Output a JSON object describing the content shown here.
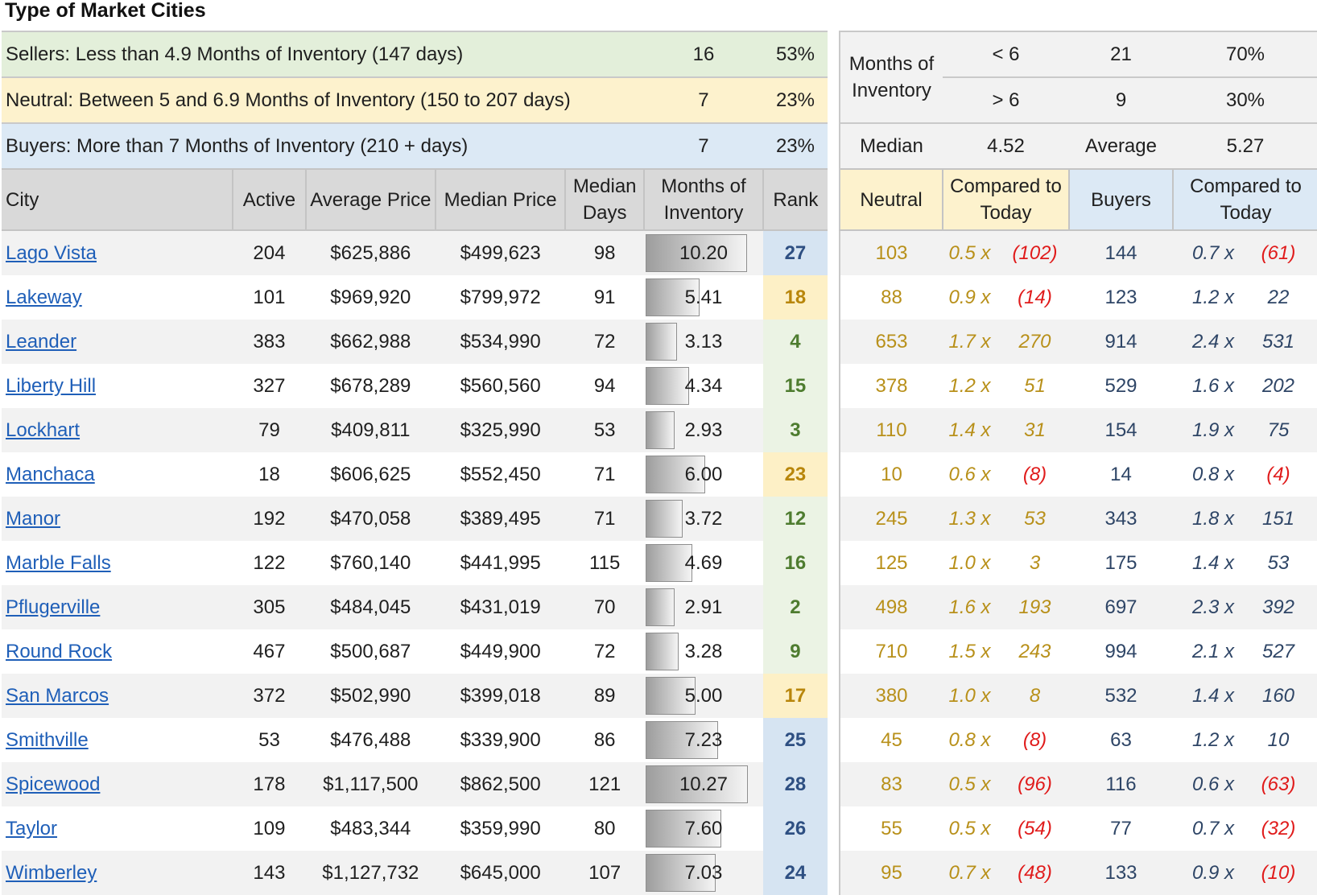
{
  "title": "Type of Market Cities",
  "summary": [
    {
      "label": "Sellers: Less than 4.9 Months of Inventory (147 days)",
      "count": "16",
      "pct": "53%"
    },
    {
      "label": "Neutral: Between 5 and 6.9 Months of Inventory (150 to 207 days)",
      "count": "7",
      "pct": "23%"
    },
    {
      "label": "Buyers: More than 7 Months of Inventory (210 + days)",
      "count": "7",
      "pct": "23%"
    }
  ],
  "right_summary": {
    "moi_label": "Months of Inventory",
    "lt_label": "< 6",
    "lt_count": "21",
    "lt_pct": "70%",
    "gt_label": "> 6",
    "gt_count": "9",
    "gt_pct": "30%",
    "median_label": "Median",
    "median_value": "4.52",
    "average_label": "Average",
    "average_value": "5.27"
  },
  "headers": {
    "city": "City",
    "active": "Active",
    "avg_price": "Average Price",
    "median_price": "Median Price",
    "median_days": "Median Days",
    "moi": "Months of Inventory",
    "rank": "Rank",
    "neutral": "Neutral",
    "compared1": "Compared to Today",
    "buyers": "Buyers",
    "compared2": "Compared to Today"
  },
  "rows": [
    {
      "city": "Lago Vista",
      "active": "204",
      "avg": "$625,886",
      "median": "$499,623",
      "days": "98",
      "moi": "10.20",
      "moi_value": 10.2,
      "rank": "27",
      "rank_color": "blue",
      "neutral": "103",
      "n_x": "0.5 x",
      "n_diff": "(102)",
      "n_neg": true,
      "buyers": "144",
      "b_x": "0.7 x",
      "b_diff": "(61)",
      "b_neg": true
    },
    {
      "city": "Lakeway",
      "active": "101",
      "avg": "$969,920",
      "median": "$799,972",
      "days": "91",
      "moi": "5.41",
      "moi_value": 5.41,
      "rank": "18",
      "rank_color": "yellow",
      "neutral": "88",
      "n_x": "0.9 x",
      "n_diff": "(14)",
      "n_neg": true,
      "buyers": "123",
      "b_x": "1.2 x",
      "b_diff": "22",
      "b_neg": false
    },
    {
      "city": "Leander",
      "active": "383",
      "avg": "$662,988",
      "median": "$534,990",
      "days": "72",
      "moi": "3.13",
      "moi_value": 3.13,
      "rank": "4",
      "rank_color": "green",
      "neutral": "653",
      "n_x": "1.7 x",
      "n_diff": "270",
      "n_neg": false,
      "buyers": "914",
      "b_x": "2.4 x",
      "b_diff": "531",
      "b_neg": false
    },
    {
      "city": "Liberty Hill",
      "active": "327",
      "avg": "$678,289",
      "median": "$560,560",
      "days": "94",
      "moi": "4.34",
      "moi_value": 4.34,
      "rank": "15",
      "rank_color": "green",
      "neutral": "378",
      "n_x": "1.2 x",
      "n_diff": "51",
      "n_neg": false,
      "buyers": "529",
      "b_x": "1.6 x",
      "b_diff": "202",
      "b_neg": false
    },
    {
      "city": "Lockhart",
      "active": "79",
      "avg": "$409,811",
      "median": "$325,990",
      "days": "53",
      "moi": "2.93",
      "moi_value": 2.93,
      "rank": "3",
      "rank_color": "green",
      "neutral": "110",
      "n_x": "1.4 x",
      "n_diff": "31",
      "n_neg": false,
      "buyers": "154",
      "b_x": "1.9 x",
      "b_diff": "75",
      "b_neg": false
    },
    {
      "city": "Manchaca",
      "active": "18",
      "avg": "$606,625",
      "median": "$552,450",
      "days": "71",
      "moi": "6.00",
      "moi_value": 6.0,
      "rank": "23",
      "rank_color": "yellow",
      "neutral": "10",
      "n_x": "0.6 x",
      "n_diff": "(8)",
      "n_neg": true,
      "buyers": "14",
      "b_x": "0.8 x",
      "b_diff": "(4)",
      "b_neg": true
    },
    {
      "city": "Manor",
      "active": "192",
      "avg": "$470,058",
      "median": "$389,495",
      "days": "71",
      "moi": "3.72",
      "moi_value": 3.72,
      "rank": "12",
      "rank_color": "green",
      "neutral": "245",
      "n_x": "1.3 x",
      "n_diff": "53",
      "n_neg": false,
      "buyers": "343",
      "b_x": "1.8 x",
      "b_diff": "151",
      "b_neg": false
    },
    {
      "city": "Marble Falls",
      "active": "122",
      "avg": "$760,140",
      "median": "$441,995",
      "days": "115",
      "moi": "4.69",
      "moi_value": 4.69,
      "rank": "16",
      "rank_color": "green",
      "neutral": "125",
      "n_x": "1.0 x",
      "n_diff": "3",
      "n_neg": false,
      "buyers": "175",
      "b_x": "1.4 x",
      "b_diff": "53",
      "b_neg": false
    },
    {
      "city": "Pflugerville",
      "active": "305",
      "avg": "$484,045",
      "median": "$431,019",
      "days": "70",
      "moi": "2.91",
      "moi_value": 2.91,
      "rank": "2",
      "rank_color": "green",
      "neutral": "498",
      "n_x": "1.6 x",
      "n_diff": "193",
      "n_neg": false,
      "buyers": "697",
      "b_x": "2.3 x",
      "b_diff": "392",
      "b_neg": false
    },
    {
      "city": "Round Rock",
      "active": "467",
      "avg": "$500,687",
      "median": "$449,900",
      "days": "72",
      "moi": "3.28",
      "moi_value": 3.28,
      "rank": "9",
      "rank_color": "green",
      "neutral": "710",
      "n_x": "1.5 x",
      "n_diff": "243",
      "n_neg": false,
      "buyers": "994",
      "b_x": "2.1 x",
      "b_diff": "527",
      "b_neg": false
    },
    {
      "city": "San Marcos",
      "active": "372",
      "avg": "$502,990",
      "median": "$399,018",
      "days": "89",
      "moi": "5.00",
      "moi_value": 5.0,
      "rank": "17",
      "rank_color": "yellow",
      "neutral": "380",
      "n_x": "1.0 x",
      "n_diff": "8",
      "n_neg": false,
      "buyers": "532",
      "b_x": "1.4 x",
      "b_diff": "160",
      "b_neg": false
    },
    {
      "city": "Smithville",
      "active": "53",
      "avg": "$476,488",
      "median": "$339,900",
      "days": "86",
      "moi": "7.23",
      "moi_value": 7.23,
      "rank": "25",
      "rank_color": "blue",
      "neutral": "45",
      "n_x": "0.8 x",
      "n_diff": "(8)",
      "n_neg": true,
      "buyers": "63",
      "b_x": "1.2 x",
      "b_diff": "10",
      "b_neg": false
    },
    {
      "city": "Spicewood",
      "active": "178",
      "avg": "$1,117,500",
      "median": "$862,500",
      "days": "121",
      "moi": "10.27",
      "moi_value": 10.27,
      "rank": "28",
      "rank_color": "blue",
      "neutral": "83",
      "n_x": "0.5 x",
      "n_diff": "(96)",
      "n_neg": true,
      "buyers": "116",
      "b_x": "0.6 x",
      "b_diff": "(63)",
      "b_neg": true
    },
    {
      "city": "Taylor",
      "active": "109",
      "avg": "$483,344",
      "median": "$359,990",
      "days": "80",
      "moi": "7.60",
      "moi_value": 7.6,
      "rank": "26",
      "rank_color": "blue",
      "neutral": "55",
      "n_x": "0.5 x",
      "n_diff": "(54)",
      "n_neg": true,
      "buyers": "77",
      "b_x": "0.7 x",
      "b_diff": "(32)",
      "b_neg": true
    },
    {
      "city": "Wimberley",
      "active": "143",
      "avg": "$1,127,732",
      "median": "$645,000",
      "days": "107",
      "moi": "7.03",
      "moi_value": 7.03,
      "rank": "24",
      "rank_color": "blue",
      "neutral": "95",
      "n_x": "0.7 x",
      "n_diff": "(48)",
      "n_neg": true,
      "buyers": "133",
      "b_x": "0.9 x",
      "b_diff": "(10)",
      "b_neg": true
    }
  ],
  "moi_bar_max": 10.27
}
